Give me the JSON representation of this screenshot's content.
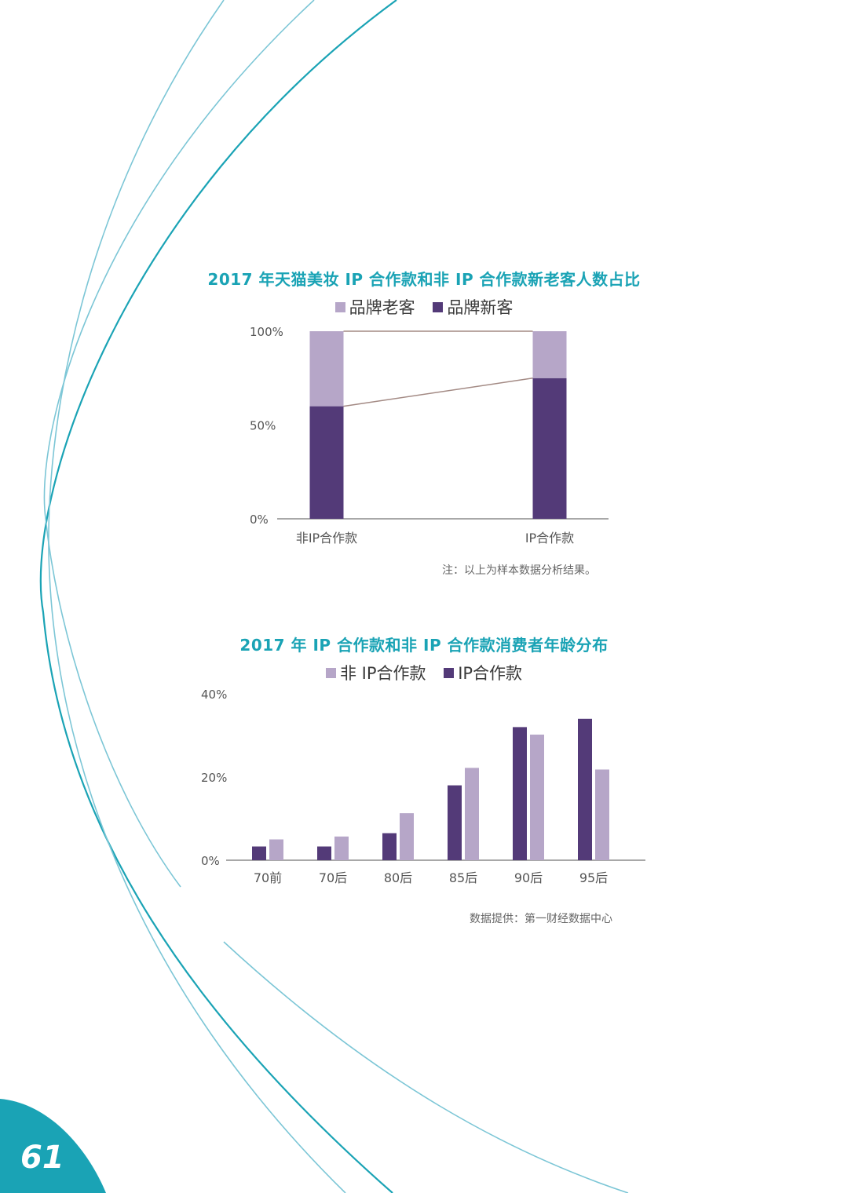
{
  "colors": {
    "teal": "#1aa3b5",
    "dark_purple": "#533a78",
    "light_purple": "#b6a6c8",
    "connector": "#a38a84",
    "axis": "#8c8c8c"
  },
  "chart_data": [
    {
      "type": "bar",
      "stacked": true,
      "title": "2017 年天猫美妆 IP 合作款和非 IP 合作款新老客人数占比",
      "categories": [
        "非IP合作款",
        "IP合作款"
      ],
      "series": [
        {
          "name": "品牌老客",
          "color": "#b6a6c8",
          "values": [
            40,
            25
          ]
        },
        {
          "name": "品牌新客",
          "color": "#533a78",
          "values": [
            60,
            75
          ]
        }
      ],
      "yticks": [
        "0%",
        "50%",
        "100%"
      ],
      "ylim": [
        0,
        100
      ],
      "legend": "top",
      "grid": false,
      "note": "注：以上为样本数据分析结果。"
    },
    {
      "type": "bar",
      "title": "2017 年 IP 合作款和非 IP 合作款消费者年龄分布",
      "categories": [
        "70前",
        "70后",
        "80后",
        "85后",
        "90后",
        "95后"
      ],
      "series": [
        {
          "name": "IP合作款",
          "color": "#533a78",
          "values": [
            3.3,
            3.3,
            6.5,
            18,
            32,
            34
          ]
        },
        {
          "name": "非 IP合作款",
          "color": "#b6a6c8",
          "values": [
            5,
            5.7,
            11.3,
            22.2,
            30.2,
            21.8
          ]
        }
      ],
      "legend_order": [
        "非 IP合作款",
        "IP合作款"
      ],
      "yticks": [
        "0%",
        "20%",
        "40%"
      ],
      "ylim": [
        0,
        40
      ],
      "legend": "top",
      "grid": false,
      "note": "数据提供：第一财经数据中心"
    }
  ],
  "page_number": "61"
}
